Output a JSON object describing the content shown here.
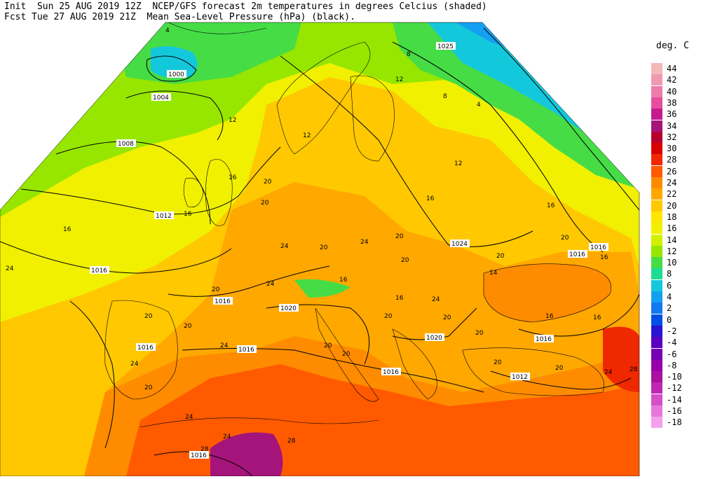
{
  "header": {
    "line1_left": "Init  Sun 25 AUG 2019 12Z",
    "line1_right": "NCEP/GFS forecast 2m temperatures in degrees Celcius (shaded)",
    "line2_left": "Fcst Tue 27 AUG 2019 21Z",
    "line2_right": "Mean Sea-Level Pressure (hPa) (black)."
  },
  "legend": {
    "title": "deg. C",
    "entries": [
      {
        "label": "44",
        "color": "#f4b8b8"
      },
      {
        "label": "42",
        "color": "#f09ab0"
      },
      {
        "label": "40",
        "color": "#ec7ca8"
      },
      {
        "label": "38",
        "color": "#e64fa0"
      },
      {
        "label": "36",
        "color": "#c41c8e"
      },
      {
        "label": "34",
        "color": "#a5147a"
      },
      {
        "label": "32",
        "color": "#b8002e"
      },
      {
        "label": "30",
        "color": "#d80000"
      },
      {
        "label": "28",
        "color": "#f02800"
      },
      {
        "label": "26",
        "color": "#ff5a00"
      },
      {
        "label": "24",
        "color": "#ff8c00"
      },
      {
        "label": "22",
        "color": "#ffa800"
      },
      {
        "label": "20",
        "color": "#ffc800"
      },
      {
        "label": "18",
        "color": "#ffe600"
      },
      {
        "label": "16",
        "color": "#f0f000"
      },
      {
        "label": "14",
        "color": "#d2f000"
      },
      {
        "label": "12",
        "color": "#96e600"
      },
      {
        "label": "10",
        "color": "#46dc46"
      },
      {
        "label": "8",
        "color": "#1edc96"
      },
      {
        "label": "6",
        "color": "#14c8dc"
      },
      {
        "label": "4",
        "color": "#14a0f0"
      },
      {
        "label": "2",
        "color": "#1478f0"
      },
      {
        "label": "0",
        "color": "#0050e6"
      },
      {
        "label": "-2",
        "color": "#2814d2"
      },
      {
        "label": "-4",
        "color": "#5a00be"
      },
      {
        "label": "-6",
        "color": "#7800b4"
      },
      {
        "label": "-8",
        "color": "#9600aa"
      },
      {
        "label": "-10",
        "color": "#aa10a0"
      },
      {
        "label": "-12",
        "color": "#be28b4"
      },
      {
        "label": "-14",
        "color": "#d250c8"
      },
      {
        "label": "-16",
        "color": "#e678dc"
      },
      {
        "label": "-18",
        "color": "#f4a0ee"
      }
    ]
  },
  "isobar_labels": [
    {
      "text": "1025"
    },
    {
      "text": "1000"
    },
    {
      "text": "1004"
    },
    {
      "text": "1008"
    },
    {
      "text": "1012"
    },
    {
      "text": "1016"
    },
    {
      "text": "1016"
    },
    {
      "text": "1016"
    },
    {
      "text": "1020"
    },
    {
      "text": "1016"
    },
    {
      "text": "1016"
    },
    {
      "text": "1024"
    },
    {
      "text": "1016"
    },
    {
      "text": "1016"
    },
    {
      "text": "1020"
    },
    {
      "text": "1016"
    },
    {
      "text": "1012"
    },
    {
      "text": "1016"
    }
  ],
  "temperature_labels": [
    {
      "text": "4"
    },
    {
      "text": "8"
    },
    {
      "text": "12"
    },
    {
      "text": "8"
    },
    {
      "text": "4"
    },
    {
      "text": "12"
    },
    {
      "text": "12"
    },
    {
      "text": "12"
    },
    {
      "text": "16"
    },
    {
      "text": "20"
    },
    {
      "text": "16"
    },
    {
      "text": "20"
    },
    {
      "text": "24"
    },
    {
      "text": "20"
    },
    {
      "text": "24"
    },
    {
      "text": "20"
    },
    {
      "text": "20"
    },
    {
      "text": "16"
    },
    {
      "text": "20"
    },
    {
      "text": "16"
    },
    {
      "text": "20"
    },
    {
      "text": "24"
    },
    {
      "text": "20"
    },
    {
      "text": "24"
    },
    {
      "text": "20"
    },
    {
      "text": "20"
    },
    {
      "text": "16"
    },
    {
      "text": "20"
    },
    {
      "text": "16"
    },
    {
      "text": "24"
    },
    {
      "text": "20"
    },
    {
      "text": "24"
    },
    {
      "text": "20"
    },
    {
      "text": "20"
    },
    {
      "text": "24"
    },
    {
      "text": "28"
    },
    {
      "text": "16"
    },
    {
      "text": "16"
    },
    {
      "text": "14"
    },
    {
      "text": "20"
    },
    {
      "text": "20"
    },
    {
      "text": "24"
    },
    {
      "text": "28"
    },
    {
      "text": "24"
    },
    {
      "text": "20"
    },
    {
      "text": "20"
    },
    {
      "text": "24"
    },
    {
      "text": "28"
    },
    {
      "text": "16"
    },
    {
      "text": "16"
    }
  ]
}
